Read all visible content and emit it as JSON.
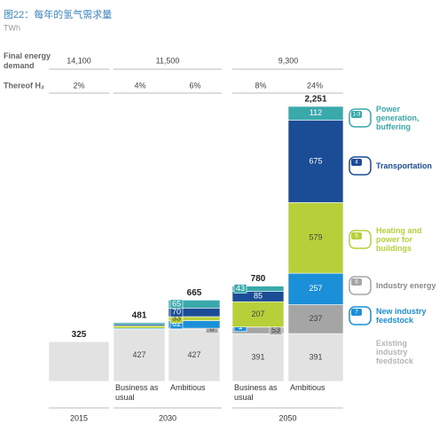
{
  "chart_data": {
    "type": "stacked_bar",
    "title": "图22：每年的氢气需求量",
    "subtitle": "TWh",
    "table": {
      "rows": [
        {
          "label": "Final energy demand",
          "cells": [
            "14,100",
            "11,500",
            "9,300"
          ]
        },
        {
          "label": "Thereof H₂",
          "cells": [
            "2%",
            "4%",
            "6%",
            "8%",
            "24%"
          ]
        }
      ]
    },
    "categories": [
      null,
      "Business as usual",
      "Ambitious",
      "Business as usual",
      "Ambitious"
    ],
    "groups": [
      "2015",
      "2030",
      "2050"
    ],
    "totals": [
      325,
      481,
      665,
      780,
      {
        "value": 2251,
        "label": "2,251"
      }
    ],
    "series": [
      {
        "name": "Existing industry feedstock",
        "color": "#e2e2e2",
        "values": [
          325,
          427,
          427,
          391,
          391
        ],
        "value_labels": [
          null,
          "427",
          "427",
          "391",
          "391"
        ]
      },
      {
        "name": "Industry energy",
        "icon": "6",
        "color": "#a5a5a5",
        "values": [
          0,
          0,
          8,
          53,
          237
        ],
        "value_labels": [
          null,
          null,
          "8",
          "53",
          "237"
        ]
      },
      {
        "name": "New industry feedstock",
        "icon": "7",
        "color": "#1b8fd8",
        "values": [
          0,
          8,
          62,
          1,
          257
        ],
        "value_labels": [
          null,
          null,
          "62",
          "1",
          "257"
        ]
      },
      {
        "name": "Heating and power for buildings",
        "icon": "5",
        "color": "#b7d03a",
        "values": [
          0,
          20,
          33,
          207,
          579
        ],
        "value_labels": [
          null,
          null,
          "33",
          "207",
          "579"
        ]
      },
      {
        "name": "Transportation",
        "icon": "4",
        "color": "#1a4d96",
        "values": [
          0,
          12,
          70,
          85,
          675
        ],
        "value_labels": [
          null,
          null,
          "70",
          "85",
          "675"
        ]
      },
      {
        "name": "Power generation, buffering",
        "icon": "1-3",
        "color": "#3aa9ab",
        "values": [
          0,
          14,
          65,
          43,
          112
        ],
        "value_labels": [
          null,
          null,
          "65",
          "43",
          "112"
        ]
      }
    ]
  }
}
